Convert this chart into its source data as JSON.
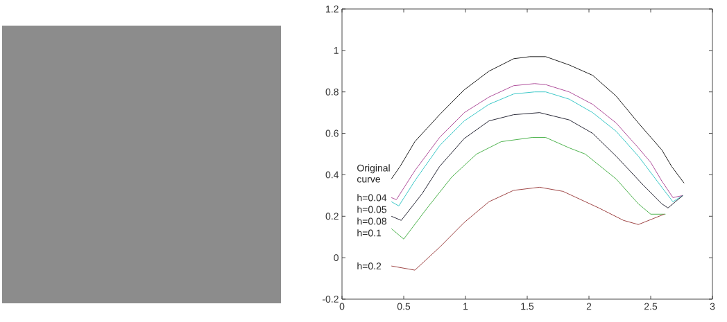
{
  "chart_data": {
    "type": "line",
    "xlim": [
      0,
      3
    ],
    "ylim": [
      -0.2,
      1.2
    ],
    "xticks": [
      0,
      0.5,
      1,
      1.5,
      2,
      2.5,
      3
    ],
    "yticks": [
      -0.2,
      0,
      0.2,
      0.4,
      0.6,
      0.8,
      1,
      1.2
    ],
    "series": [
      {
        "name": "Original curve",
        "color": "#222222",
        "x": [
          0.4,
          0.47,
          0.59,
          0.79,
          0.99,
          1.19,
          1.39,
          1.52,
          1.65,
          1.84,
          2.03,
          2.22,
          2.4,
          2.59,
          2.67,
          2.77
        ],
        "values": [
          0.38,
          0.44,
          0.56,
          0.69,
          0.81,
          0.9,
          0.96,
          0.97,
          0.97,
          0.93,
          0.88,
          0.78,
          0.65,
          0.52,
          0.44,
          0.36
        ]
      },
      {
        "name": "h=0.04",
        "color": "#b0509c",
        "x": [
          0.4,
          0.44,
          0.59,
          0.79,
          0.99,
          1.19,
          1.39,
          1.56,
          1.65,
          1.84,
          2.03,
          2.22,
          2.4,
          2.5,
          2.59,
          2.68,
          2.76
        ],
        "values": [
          0.29,
          0.28,
          0.42,
          0.58,
          0.7,
          0.775,
          0.83,
          0.84,
          0.835,
          0.8,
          0.74,
          0.65,
          0.53,
          0.46,
          0.37,
          0.29,
          0.3
        ]
      },
      {
        "name": "h=0.05",
        "color": "#3cc8c8",
        "x": [
          0.4,
          0.46,
          0.6,
          0.79,
          0.99,
          1.19,
          1.39,
          1.56,
          1.65,
          1.84,
          2.03,
          2.22,
          2.4,
          2.59,
          2.68,
          2.76
        ],
        "values": [
          0.27,
          0.25,
          0.38,
          0.54,
          0.66,
          0.74,
          0.79,
          0.8,
          0.8,
          0.765,
          0.7,
          0.61,
          0.49,
          0.34,
          0.27,
          0.3
        ]
      },
      {
        "name": "h=0.08",
        "color": "#2a2a38",
        "x": [
          0.4,
          0.48,
          0.65,
          0.79,
          0.99,
          1.19,
          1.39,
          1.6,
          1.84,
          2.03,
          2.22,
          2.44,
          2.59,
          2.64,
          2.76
        ],
        "values": [
          0.2,
          0.18,
          0.31,
          0.44,
          0.575,
          0.66,
          0.69,
          0.7,
          0.665,
          0.6,
          0.49,
          0.35,
          0.26,
          0.24,
          0.3
        ]
      },
      {
        "name": "h=0.1",
        "color": "#50b450",
        "x": [
          0.4,
          0.5,
          0.69,
          0.89,
          1.09,
          1.29,
          1.54,
          1.65,
          1.84,
          1.97,
          2.22,
          2.4,
          2.5,
          2.62
        ],
        "values": [
          0.14,
          0.09,
          0.24,
          0.39,
          0.5,
          0.56,
          0.58,
          0.58,
          0.53,
          0.5,
          0.38,
          0.26,
          0.21,
          0.21
        ]
      },
      {
        "name": "h=0.2",
        "color": "#a04848",
        "x": [
          0.4,
          0.59,
          0.79,
          0.99,
          1.19,
          1.39,
          1.6,
          1.79,
          2.08,
          2.28,
          2.4,
          2.61
        ],
        "values": [
          -0.04,
          -0.06,
          0.05,
          0.17,
          0.27,
          0.325,
          0.34,
          0.32,
          0.24,
          0.18,
          0.16,
          0.21
        ]
      }
    ]
  }
}
